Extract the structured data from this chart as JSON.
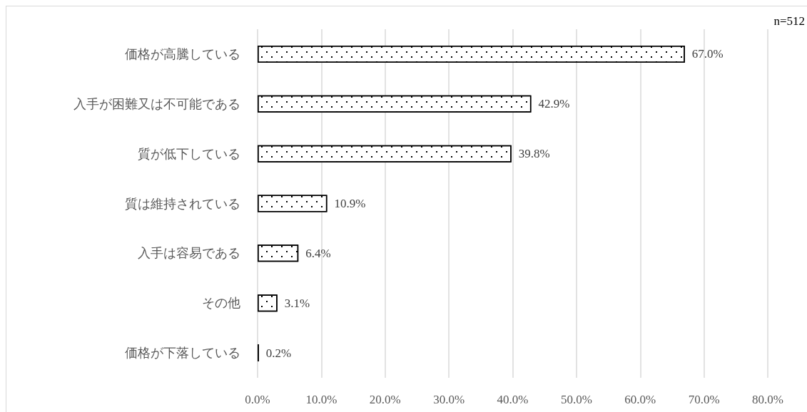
{
  "chart_data": {
    "type": "bar",
    "orientation": "horizontal",
    "categories": [
      "価格が高騰している",
      "入手が困難又は不可能である",
      "質が低下している",
      "質は維持されている",
      "入手は容易である",
      "その他",
      "価格が下落している"
    ],
    "values": [
      67.0,
      42.9,
      39.8,
      10.9,
      6.4,
      3.1,
      0.2
    ],
    "color": "#ffffff",
    "value_labels": [
      "67.0%",
      "42.9%",
      "39.8%",
      "10.9%",
      "6.4%",
      "3.1%",
      "0.2%"
    ],
    "xlim": [
      0,
      80
    ],
    "xticks": [
      {
        "value": 0,
        "label": "0.0%"
      },
      {
        "value": 10,
        "label": "10.0%"
      },
      {
        "value": 20,
        "label": "20.0%"
      },
      {
        "value": 30,
        "label": "30.0%"
      },
      {
        "value": 40,
        "label": "40.0%"
      },
      {
        "value": 50,
        "label": "50.0%"
      },
      {
        "value": 60,
        "label": "60.0%"
      },
      {
        "value": 70,
        "label": "70.0%"
      },
      {
        "value": 80,
        "label": "80.0%"
      }
    ],
    "grid": "x",
    "annotations": [
      "n=512"
    ]
  }
}
